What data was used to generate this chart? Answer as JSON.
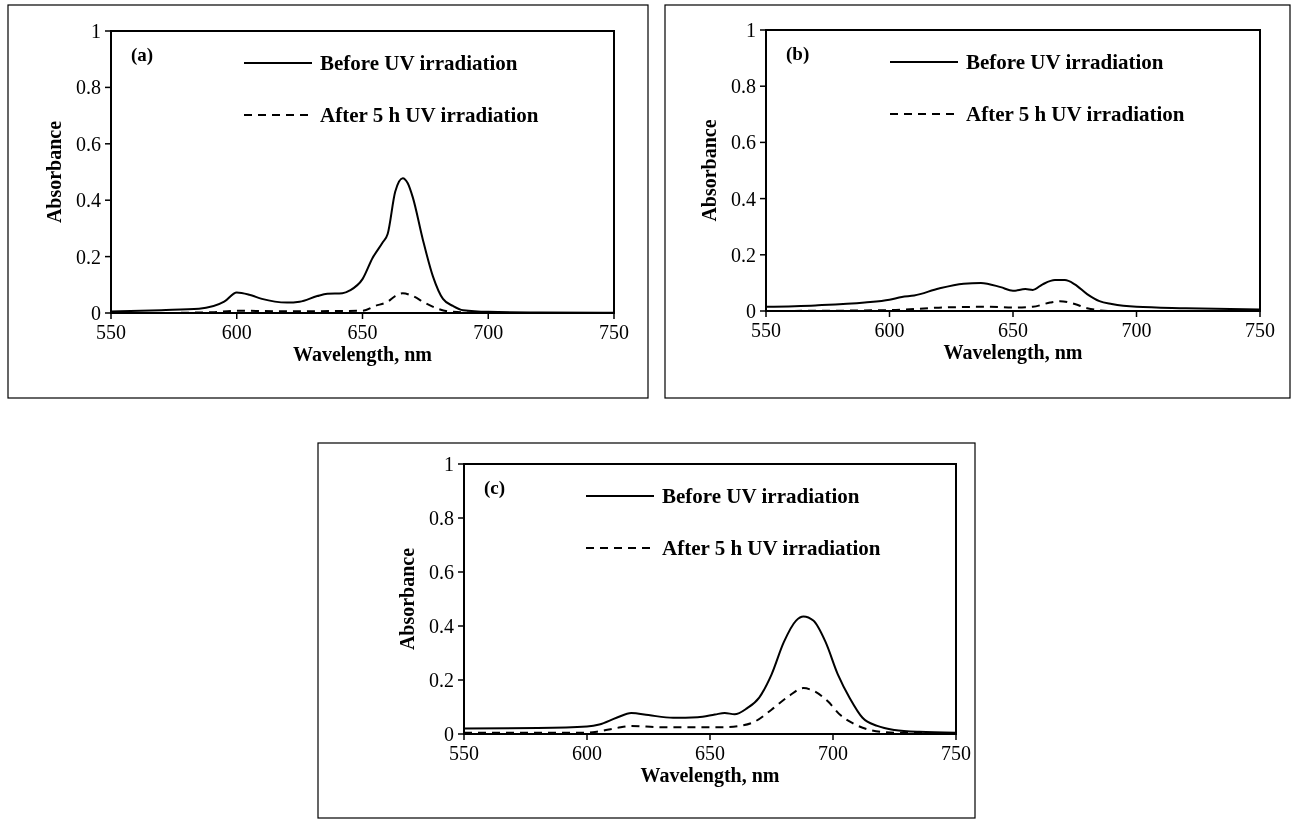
{
  "chart_data": [
    {
      "type": "line",
      "xlabel": "Wavelength, nm",
      "ylabel": "Absorbance",
      "xlim": [
        550,
        750
      ],
      "ylim": [
        0,
        1
      ],
      "xticks": [
        550,
        600,
        650,
        700,
        750
      ],
      "yticks": [
        0,
        0.2,
        0.4,
        0.6,
        0.8,
        1
      ],
      "legend": "top right",
      "annotations": [
        "(a)"
      ],
      "series": [
        {
          "name": "Before UV irradiation",
          "color": "#000000",
          "line_style": "solid",
          "x": [
            550,
            570,
            585,
            595,
            600,
            605,
            610,
            620,
            625,
            632,
            636,
            642,
            645,
            650,
            654,
            658,
            660,
            663,
            666,
            668,
            670,
            674,
            678,
            682,
            686,
            690,
            700,
            720,
            750
          ],
          "values": [
            0.005,
            0.01,
            0.015,
            0.04,
            0.073,
            0.065,
            0.05,
            0.037,
            0.04,
            0.06,
            0.068,
            0.07,
            0.08,
            0.12,
            0.195,
            0.25,
            0.28,
            0.43,
            0.478,
            0.46,
            0.41,
            0.26,
            0.13,
            0.05,
            0.025,
            0.01,
            0.004,
            0.002,
            0.001
          ]
        },
        {
          "name": "After 5 h UV irradiation",
          "color": "#000000",
          "line_style": "dashed",
          "x": [
            550,
            570,
            590,
            600,
            620,
            640,
            650,
            655,
            660,
            663,
            666,
            670,
            675,
            680,
            685,
            700,
            750
          ],
          "values": [
            0,
            0,
            0.003,
            0.008,
            0.006,
            0.007,
            0.008,
            0.025,
            0.04,
            0.06,
            0.07,
            0.06,
            0.035,
            0.015,
            0.005,
            0,
            0
          ]
        }
      ]
    },
    {
      "type": "line",
      "xlabel": "Wavelength, nm",
      "ylabel": "Absorbance",
      "xlim": [
        550,
        750
      ],
      "ylim": [
        0,
        1
      ],
      "xticks": [
        550,
        600,
        650,
        700,
        750
      ],
      "yticks": [
        0,
        0.2,
        0.4,
        0.6,
        0.8,
        1
      ],
      "legend": "top right",
      "annotations": [
        "(b)"
      ],
      "series": [
        {
          "name": "Before UV irradiation",
          "color": "#000000",
          "line_style": "solid",
          "x": [
            550,
            570,
            590,
            600,
            605,
            610,
            620,
            630,
            637,
            645,
            650,
            655,
            658,
            662,
            667,
            671,
            675,
            680,
            685,
            690,
            700,
            720,
            750
          ],
          "values": [
            0.015,
            0.02,
            0.03,
            0.04,
            0.05,
            0.055,
            0.08,
            0.097,
            0.1,
            0.085,
            0.072,
            0.078,
            0.075,
            0.095,
            0.11,
            0.11,
            0.095,
            0.06,
            0.035,
            0.025,
            0.015,
            0.01,
            0.005
          ]
        },
        {
          "name": "After 5 h UV irradiation",
          "color": "#000000",
          "line_style": "dashed",
          "x": [
            550,
            600,
            620,
            640,
            650,
            658,
            665,
            669,
            675,
            680,
            690,
            750
          ],
          "values": [
            0,
            0.003,
            0.012,
            0.015,
            0.012,
            0.015,
            0.03,
            0.035,
            0.025,
            0.01,
            0,
            0
          ]
        }
      ]
    },
    {
      "type": "line",
      "xlabel": "Wavelength, nm",
      "ylabel": "Absorbance",
      "xlim": [
        550,
        750
      ],
      "ylim": [
        0,
        1
      ],
      "xticks": [
        550,
        600,
        650,
        700,
        750
      ],
      "yticks": [
        0,
        0.2,
        0.4,
        0.6,
        0.8,
        1
      ],
      "legend": "top right",
      "annotations": [
        "(c)"
      ],
      "series": [
        {
          "name": "Before UV irradiation",
          "color": "#000000",
          "line_style": "solid",
          "x": [
            550,
            580,
            600,
            605,
            612,
            618,
            625,
            635,
            645,
            652,
            656,
            660,
            665,
            670,
            675,
            680,
            685,
            688,
            692,
            697,
            702,
            707,
            712,
            718,
            725,
            735,
            750
          ],
          "values": [
            0.02,
            0.022,
            0.028,
            0.035,
            0.06,
            0.078,
            0.07,
            0.06,
            0.062,
            0.072,
            0.078,
            0.073,
            0.095,
            0.135,
            0.22,
            0.34,
            0.42,
            0.435,
            0.42,
            0.34,
            0.22,
            0.13,
            0.06,
            0.03,
            0.015,
            0.008,
            0.005
          ]
        },
        {
          "name": "After 5 h UV irradiation",
          "color": "#000000",
          "line_style": "dashed",
          "x": [
            550,
            600,
            605,
            612,
            618,
            630,
            645,
            655,
            662,
            668,
            675,
            682,
            688,
            692,
            698,
            703,
            708,
            715,
            725,
            750
          ],
          "values": [
            0.005,
            0.005,
            0.01,
            0.022,
            0.03,
            0.025,
            0.025,
            0.025,
            0.03,
            0.045,
            0.09,
            0.14,
            0.17,
            0.16,
            0.12,
            0.07,
            0.04,
            0.015,
            0.005,
            0.003
          ]
        }
      ]
    }
  ]
}
